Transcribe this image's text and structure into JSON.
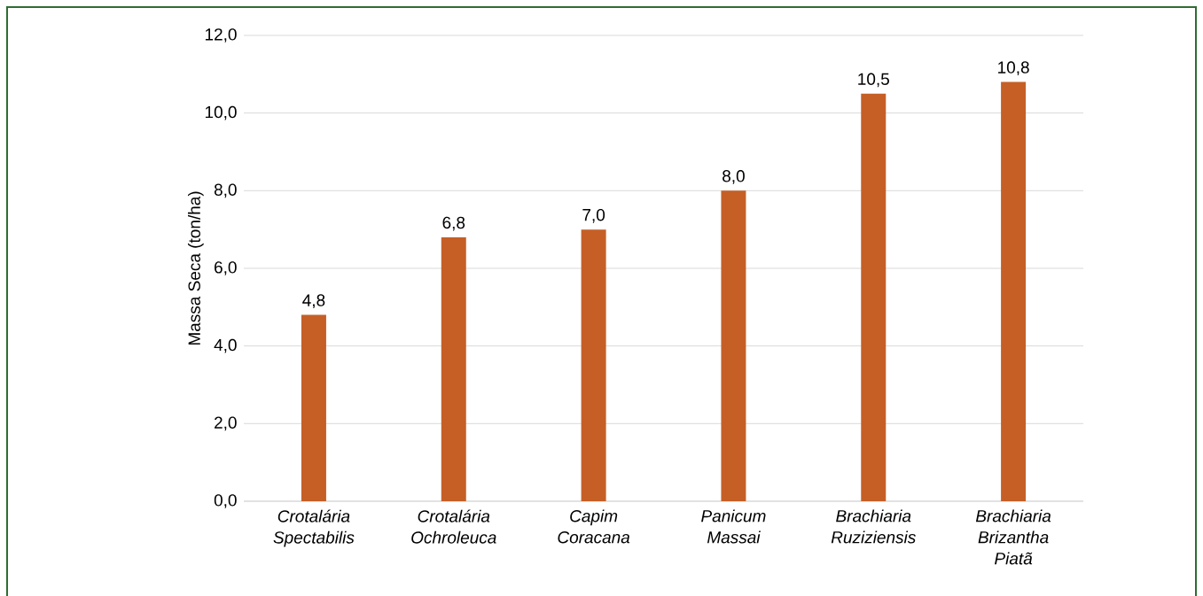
{
  "chart_data": {
    "type": "bar",
    "ylabel": "Massa Seca (ton/ha)",
    "categories": [
      "Crotalária Spectabilis",
      "Crotalária Ochroleuca",
      "Capim Coracana",
      "Panicum Massai",
      "Brachiaria Ruziziensis",
      "Brachiaria Brizantha Piatã"
    ],
    "values": [
      4.8,
      6.8,
      7.0,
      8.0,
      10.5,
      10.8
    ],
    "value_labels": [
      "4,8",
      "6,8",
      "7,0",
      "8,0",
      "10,5",
      "10,8"
    ],
    "color": "#c55f26",
    "ylim": [
      0,
      12
    ],
    "yticks": [
      {
        "value": 0,
        "label": "0,0"
      },
      {
        "value": 2,
        "label": "2,0"
      },
      {
        "value": 4,
        "label": "4,0"
      },
      {
        "value": 6,
        "label": "6,0"
      },
      {
        "value": 8,
        "label": "8,0"
      },
      {
        "value": 10,
        "label": "10,0"
      },
      {
        "value": 12,
        "label": "12,0"
      }
    ],
    "grid": "y"
  }
}
